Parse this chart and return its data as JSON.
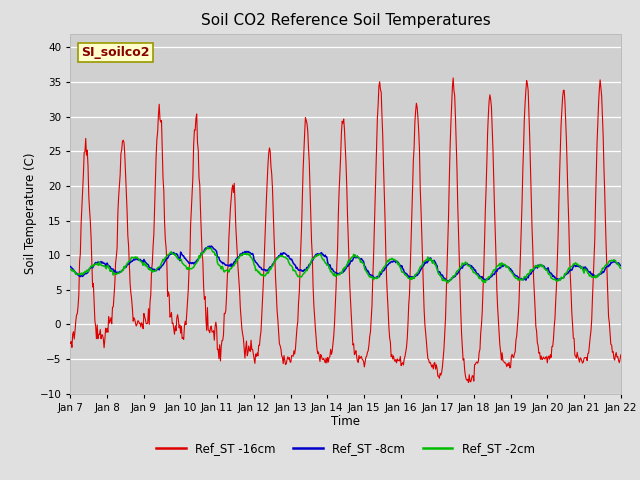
{
  "title": "Soil CO2 Reference Soil Temperatures",
  "xlabel": "Time",
  "ylabel": "Soil Temperature (C)",
  "ylim": [
    -10,
    42
  ],
  "yticks": [
    -10,
    -5,
    0,
    5,
    10,
    15,
    20,
    25,
    30,
    35,
    40
  ],
  "label_box": "SI_soilco2",
  "legend_labels": [
    "Ref_ST -16cm",
    "Ref_ST -8cm",
    "Ref_ST -2cm"
  ],
  "line_colors": [
    "#dd0000",
    "#0000cc",
    "#00bb00"
  ],
  "fig_bg": "#e0e0e0",
  "plot_bg": "#d0d0d0",
  "title_fontsize": 11,
  "tick_labels": [
    "Jan 7",
    "Jan 8",
    "Jan 9",
    "Jan 10",
    "Jan 11",
    "Jan 12",
    "Jan 13",
    "Jan 14",
    "Jan 15",
    "Jan 16",
    "Jan 17",
    "Jan 18",
    "Jan 19",
    "Jan 20",
    "Jan 21",
    "Jan 22"
  ],
  "red_day_peaks": [
    26,
    27,
    31,
    29,
    20,
    25,
    30,
    30,
    35,
    32,
    35,
    33,
    35,
    34,
    35
  ],
  "red_day_troughs": [
    -2,
    0,
    0,
    -1,
    -4,
    -5,
    -5,
    -5,
    -5,
    -6,
    -8,
    -6,
    -5,
    -5,
    -5
  ],
  "blue_base": [
    8.0,
    8.5,
    9.0,
    10.0,
    9.5,
    9.0,
    9.0,
    8.5,
    8.0,
    8.0,
    7.5,
    7.5,
    7.5,
    7.5,
    8.0
  ],
  "blue_amp": [
    1.0,
    1.0,
    1.2,
    1.2,
    1.0,
    1.2,
    1.3,
    1.2,
    1.2,
    1.3,
    1.2,
    1.0,
    1.0,
    1.0,
    1.0
  ],
  "green_base": [
    8.0,
    8.5,
    9.0,
    9.5,
    9.0,
    8.5,
    8.5,
    8.5,
    8.0,
    8.0,
    7.5,
    7.5,
    7.5,
    7.5,
    8.0
  ],
  "green_amp": [
    0.8,
    1.2,
    1.3,
    1.5,
    1.3,
    1.4,
    1.5,
    1.4,
    1.4,
    1.4,
    1.3,
    1.2,
    1.0,
    1.2,
    1.2
  ]
}
